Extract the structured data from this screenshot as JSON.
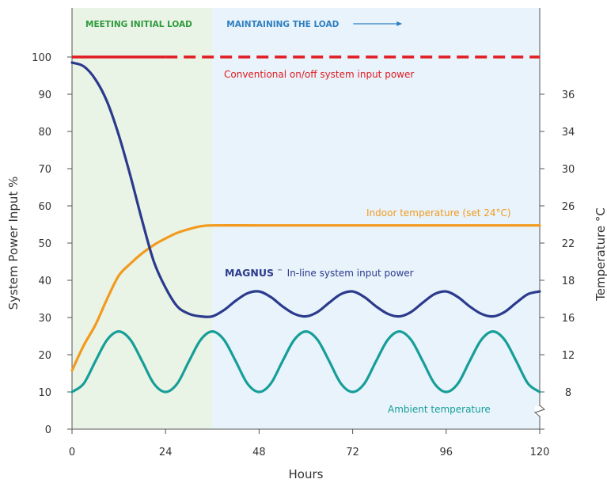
{
  "chart_data": {
    "type": "line",
    "xlabel": "Hours",
    "ylabel_left": "System Power Input %",
    "ylabel_right": "Temperature °C",
    "x_ticks": [
      0,
      24,
      48,
      72,
      96,
      120
    ],
    "xlim": [
      0,
      120
    ],
    "y_left_ticks": [
      0,
      10,
      20,
      30,
      40,
      50,
      60,
      70,
      80,
      90,
      100
    ],
    "ylim_left": [
      0,
      100
    ],
    "y_right_ticks": [
      8,
      12,
      16,
      18,
      22,
      26,
      30,
      34,
      36
    ],
    "phases": [
      {
        "label": "MEETING INITIAL LOAD",
        "x_range": [
          0,
          36
        ],
        "color": "#e9f4e6",
        "text_color": "#2e9a3c"
      },
      {
        "label": "MAINTAINING THE LOAD",
        "x_range": [
          36,
          120
        ],
        "color": "#e8f3fb",
        "text_color": "#2f7fc0"
      }
    ],
    "series": [
      {
        "name": "Conventional on/off system input power",
        "color": "#e11b22",
        "style": "solid then dashed",
        "axis": "left",
        "x": [
          0,
          24,
          120
        ],
        "y": [
          100,
          100,
          100
        ]
      },
      {
        "name": "In-line system input power",
        "brand": "MAGNUS",
        "brand_mark": "™",
        "color": "#2b3a8c",
        "axis": "left",
        "x": [
          0,
          3,
          6,
          9,
          12,
          15,
          18,
          21,
          24,
          27,
          30,
          33,
          36,
          39,
          42,
          45,
          48,
          51,
          54,
          57,
          60,
          63,
          66,
          69,
          72,
          75,
          78,
          81,
          84,
          87,
          90,
          93,
          96,
          99,
          102,
          105,
          108,
          111,
          114,
          117,
          120
        ],
        "y": [
          98.5,
          97.5,
          94,
          88,
          79,
          68,
          56,
          45,
          38,
          33,
          31,
          30.3,
          30.3,
          32,
          34.5,
          36.5,
          37,
          35.5,
          33,
          31,
          30.3,
          31.5,
          34,
          36.3,
          37,
          35.5,
          33,
          31,
          30.3,
          31.5,
          34,
          36.3,
          37,
          35.5,
          33,
          31,
          30.3,
          31.5,
          34,
          36.3,
          37
        ]
      },
      {
        "name": "Indoor temperature (set 24°C)",
        "color": "#f29a1e",
        "axis": "right",
        "x": [
          0,
          3,
          6,
          9,
          12,
          15,
          18,
          21,
          24,
          27,
          30,
          33,
          36,
          48,
          60,
          72,
          84,
          96,
          108,
          120
        ],
        "y": [
          10.3,
          13.0,
          15.2,
          17.0,
          18.5,
          19.8,
          20.9,
          21.8,
          22.5,
          23.1,
          23.5,
          23.8,
          23.9,
          23.9,
          23.9,
          23.9,
          23.9,
          23.9,
          23.9,
          23.9
        ]
      },
      {
        "name": "Ambient temperature",
        "color": "#169e98",
        "axis": "right",
        "x": [
          0,
          3,
          6,
          9,
          12,
          15,
          18,
          21,
          24,
          27,
          30,
          33,
          36,
          39,
          42,
          45,
          48,
          51,
          54,
          57,
          60,
          63,
          66,
          69,
          72,
          75,
          78,
          81,
          84,
          87,
          90,
          93,
          96,
          99,
          102,
          105,
          108,
          111,
          114,
          117,
          120
        ],
        "y": [
          8.0,
          8.9,
          11.3,
          13.6,
          14.5,
          13.6,
          11.3,
          8.9,
          8.0,
          8.9,
          11.3,
          13.6,
          14.5,
          13.6,
          11.3,
          8.9,
          8.0,
          8.9,
          11.3,
          13.6,
          14.5,
          13.6,
          11.3,
          8.9,
          8.0,
          8.9,
          11.3,
          13.6,
          14.5,
          13.6,
          11.3,
          8.9,
          8.0,
          8.9,
          11.3,
          13.6,
          14.5,
          13.6,
          11.3,
          8.9,
          8.0
        ]
      }
    ],
    "grid": false,
    "legend": "inline labels"
  }
}
